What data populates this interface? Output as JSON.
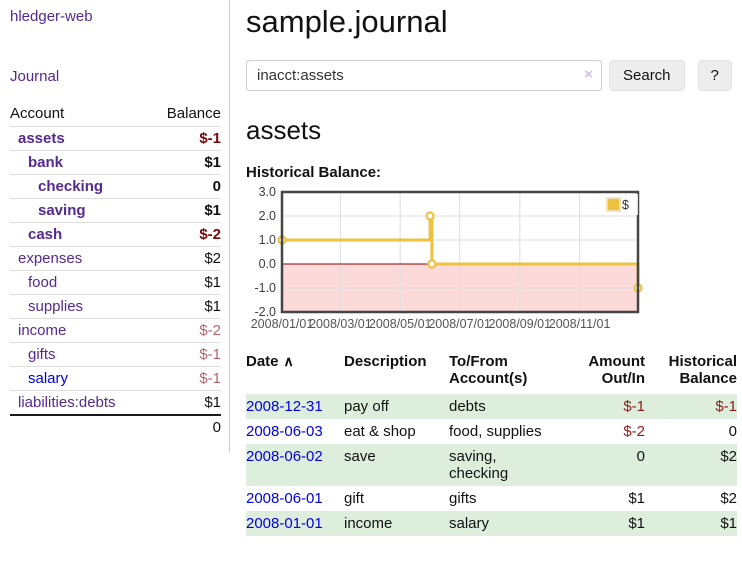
{
  "colors": {
    "accent_purple": "#552a90",
    "link_blue": "#0000e0",
    "neg_strong": "#7c0606",
    "neg_soft": "#b9636e",
    "table_neg": "#8b1c1c",
    "row_green": "#ddeedd",
    "series_yellow": "#edc240"
  },
  "sidebar": {
    "app_title": "hledger-web",
    "nav_journal": "Journal",
    "col_account": "Account",
    "col_balance": "Balance",
    "accounts": [
      {
        "name": "assets",
        "depth": 1,
        "bold": true,
        "balance": "$-1",
        "neg": "strong"
      },
      {
        "name": "bank",
        "depth": 2,
        "bold": true,
        "balance": "$1",
        "neg": "none"
      },
      {
        "name": "checking",
        "depth": 3,
        "bold": true,
        "balance": "0",
        "neg": "none"
      },
      {
        "name": "saving",
        "depth": 3,
        "bold": true,
        "balance": "$1",
        "neg": "none"
      },
      {
        "name": "cash",
        "depth": 2,
        "bold": true,
        "balance": "$-2",
        "neg": "strong"
      },
      {
        "name": "expenses",
        "depth": 1,
        "bold": false,
        "balance": "$2",
        "neg": "none"
      },
      {
        "name": "food",
        "depth": 2,
        "bold": false,
        "balance": "$1",
        "neg": "none"
      },
      {
        "name": "supplies",
        "depth": 2,
        "bold": false,
        "balance": "$1",
        "neg": "none"
      },
      {
        "name": "income",
        "depth": 1,
        "bold": false,
        "balance": "$-2",
        "neg": "soft"
      },
      {
        "name": "gifts",
        "depth": 2,
        "bold": false,
        "balance": "$-1",
        "neg": "soft"
      },
      {
        "name": "salary",
        "depth": 2,
        "bold": false,
        "balance": "$-1",
        "neg": "soft",
        "link": "blue"
      },
      {
        "name": "liabilities:debts",
        "depth": 1,
        "bold": false,
        "balance": "$1",
        "neg": "none"
      }
    ],
    "total": "0"
  },
  "header": {
    "title": "sample.journal"
  },
  "search": {
    "value": "inacct:assets",
    "clear_icon": "×",
    "button_label": "Search",
    "help_label": "?"
  },
  "account_page": {
    "heading": "assets",
    "chart_label": "Historical Balance:"
  },
  "chart_data": {
    "type": "line",
    "title": "Historical Balance",
    "ylim": [
      -2,
      3
    ],
    "grid": true,
    "legend_position": "top-right",
    "yticks": [
      {
        "v": 3,
        "label": "3.0"
      },
      {
        "v": 2,
        "label": "2.0"
      },
      {
        "v": 1,
        "label": "1.0"
      },
      {
        "v": 0,
        "label": "0.0"
      },
      {
        "v": -1,
        "label": "-1.0"
      },
      {
        "v": -2,
        "label": "-2.0"
      }
    ],
    "xticks": [
      {
        "f": 0.0,
        "label": "2008/01/01"
      },
      {
        "f": 0.164,
        "label": "2008/03/01"
      },
      {
        "f": 0.332,
        "label": "2008/05/01"
      },
      {
        "f": 0.499,
        "label": "2008/07/01"
      },
      {
        "f": 0.668,
        "label": "2008/09/01"
      },
      {
        "f": 0.836,
        "label": "2008/11/01"
      }
    ],
    "series": [
      {
        "name": "$",
        "color": "#edc240",
        "path": [
          [
            0,
            1
          ],
          [
            0.416,
            1
          ],
          [
            0.416,
            2
          ],
          [
            0.421,
            2
          ],
          [
            0.421,
            0
          ],
          [
            1,
            0
          ],
          [
            1,
            -1
          ]
        ],
        "markers": [
          [
            0,
            1
          ],
          [
            0.416,
            2
          ],
          [
            0.421,
            0
          ],
          [
            1,
            -1
          ]
        ],
        "points_by_date": [
          {
            "date": "2008-01-01",
            "balance": 1
          },
          {
            "date": "2008-06-01",
            "balance": 2
          },
          {
            "date": "2008-06-02",
            "balance": 2
          },
          {
            "date": "2008-06-03",
            "balance": 0
          },
          {
            "date": "2008-12-31",
            "balance": -1
          }
        ]
      }
    ],
    "zero_line_color": "#8b0000",
    "negative_fill": "#fcdada",
    "legend": {
      "label": "$",
      "color": "#edc240"
    }
  },
  "transactions": {
    "sort_icon": "∧",
    "headers": [
      {
        "l1": "Date",
        "l2": ""
      },
      {
        "l1": "Description",
        "l2": ""
      },
      {
        "l1": "To/From",
        "l2": "Account(s)"
      },
      {
        "l1": "Amount",
        "l2": "Out/In"
      },
      {
        "l1": "Historical",
        "l2": "Balance"
      }
    ],
    "rows": [
      {
        "date": "2008-12-31",
        "description": "pay off",
        "accounts": "debts",
        "amount": "$-1",
        "amount_neg": true,
        "balance": "$-1",
        "balance_neg": true,
        "shaded": true
      },
      {
        "date": "2008-06-03",
        "description": "eat & shop",
        "accounts": "food, supplies",
        "amount": "$-2",
        "amount_neg": true,
        "balance": "0",
        "balance_neg": false,
        "shaded": false
      },
      {
        "date": "2008-06-02",
        "description": "save",
        "accounts": "saving, checking",
        "amount": "0",
        "amount_neg": false,
        "balance": "$2",
        "balance_neg": false,
        "shaded": true
      },
      {
        "date": "2008-06-01",
        "description": "gift",
        "accounts": "gifts",
        "amount": "$1",
        "amount_neg": false,
        "balance": "$2",
        "balance_neg": false,
        "shaded": false
      },
      {
        "date": "2008-01-01",
        "description": "income",
        "accounts": "salary",
        "amount": "$1",
        "amount_neg": false,
        "balance": "$1",
        "balance_neg": false,
        "shaded": true
      }
    ]
  }
}
